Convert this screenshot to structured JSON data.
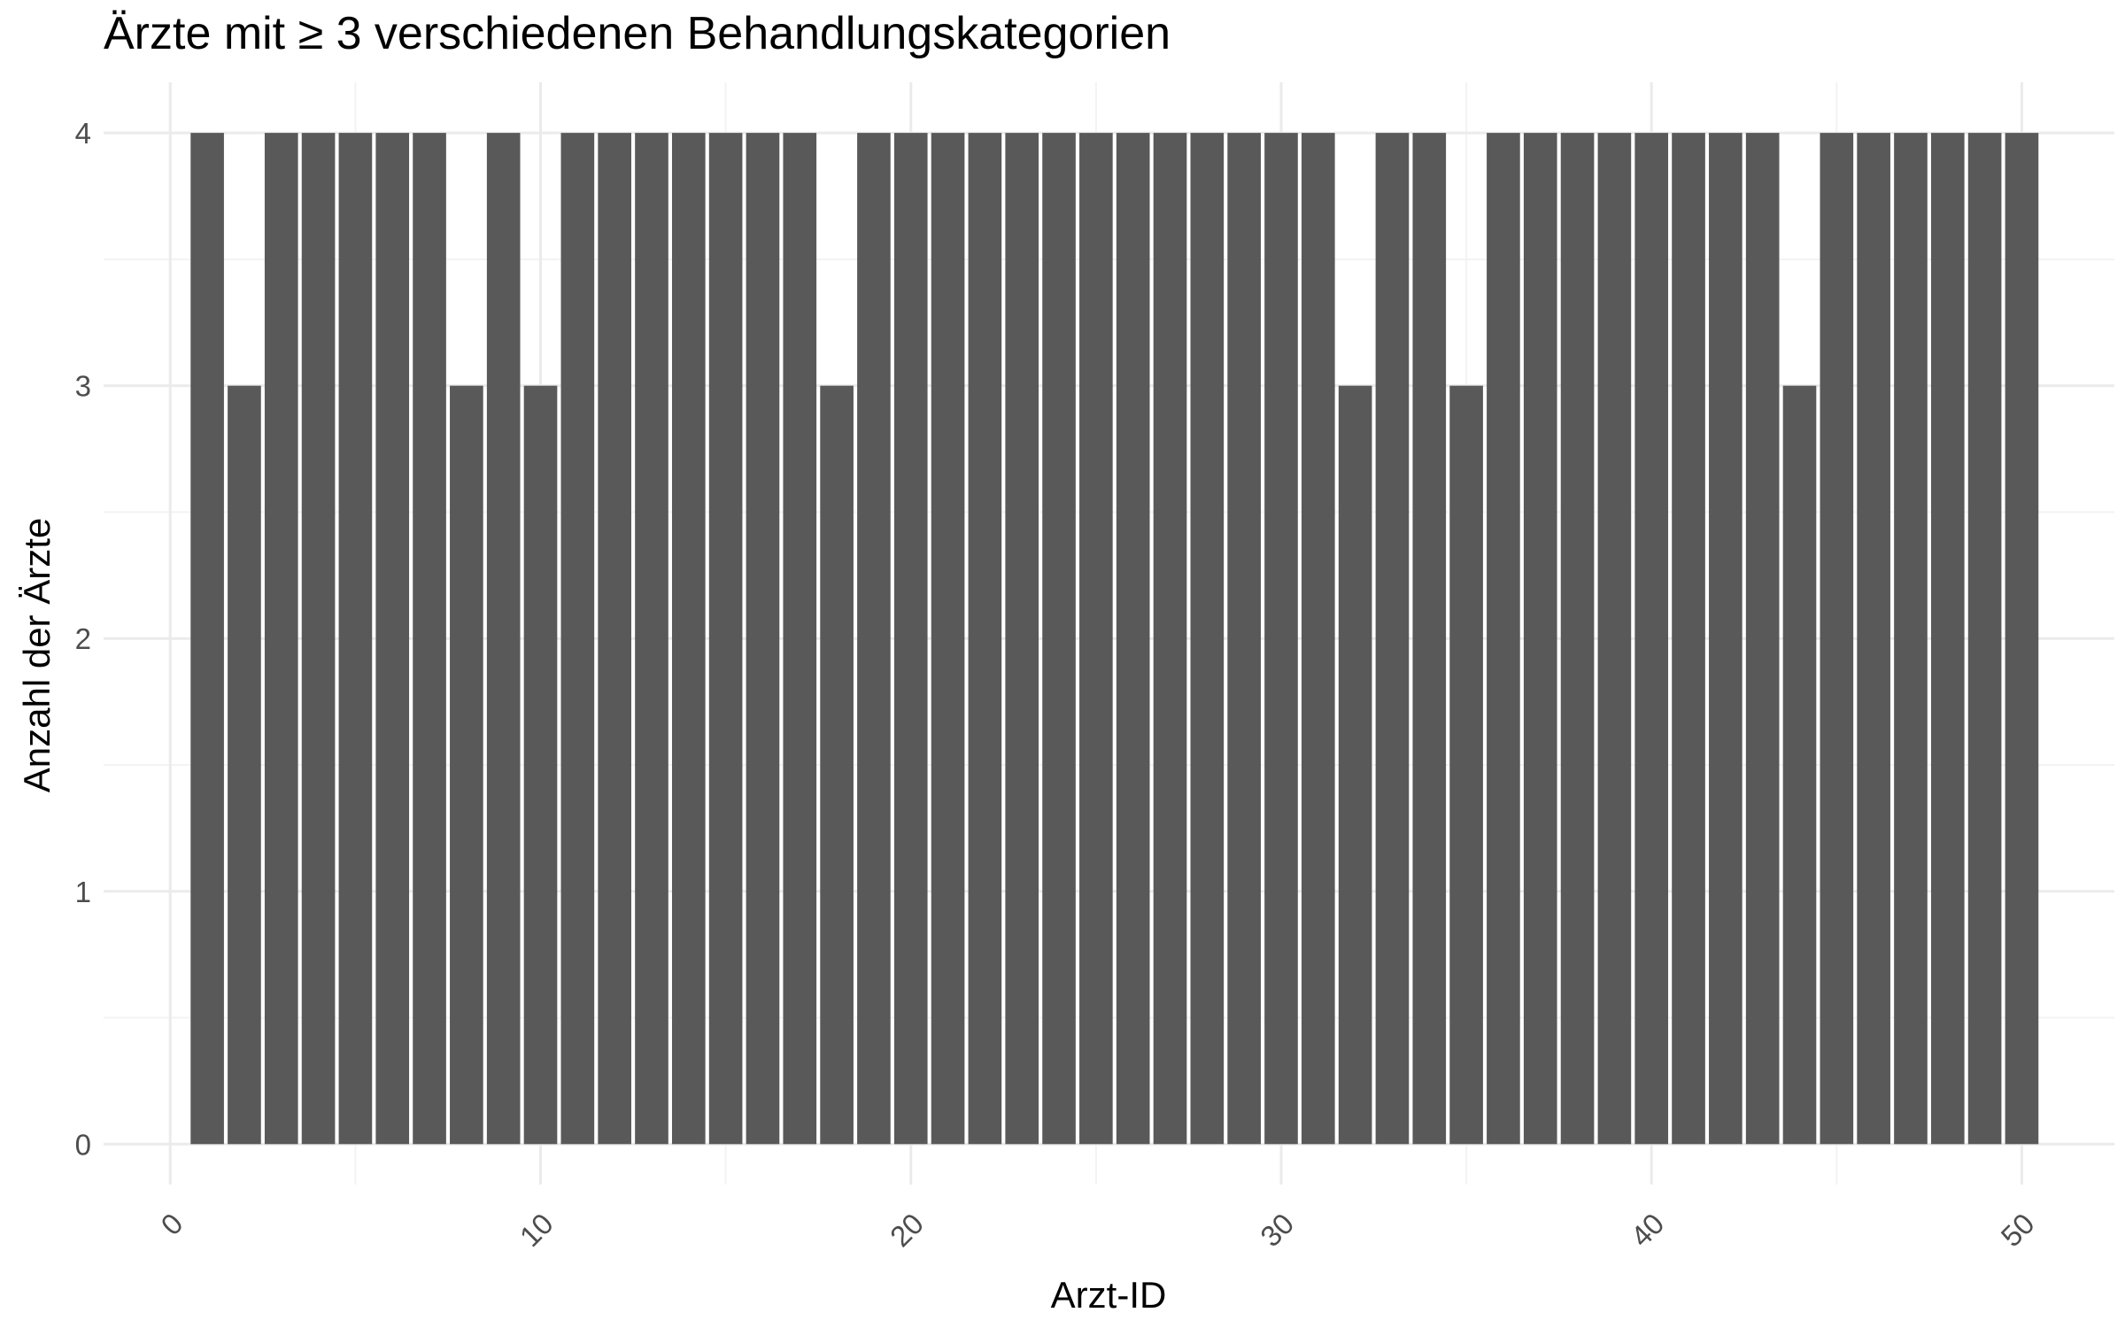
{
  "chart_data": {
    "type": "bar",
    "title": "Ärzte mit ≥ 3 verschiedenen Behandlungskategorien",
    "xlabel": "Arzt-ID",
    "ylabel": "Anzahl der Ärzte",
    "x": [
      1,
      2,
      3,
      4,
      5,
      6,
      7,
      8,
      9,
      10,
      11,
      12,
      13,
      14,
      15,
      16,
      17,
      18,
      19,
      20,
      21,
      22,
      23,
      24,
      25,
      26,
      27,
      28,
      29,
      30,
      31,
      32,
      33,
      34,
      35,
      36,
      37,
      38,
      39,
      40,
      41,
      42,
      43,
      44,
      45,
      46,
      47,
      48,
      49,
      50
    ],
    "values": [
      4,
      3,
      4,
      4,
      4,
      4,
      4,
      3,
      4,
      3,
      4,
      4,
      4,
      4,
      4,
      4,
      4,
      3,
      4,
      4,
      4,
      4,
      4,
      4,
      4,
      4,
      4,
      4,
      4,
      4,
      4,
      3,
      4,
      4,
      3,
      4,
      4,
      4,
      4,
      4,
      4,
      4,
      4,
      3,
      4,
      4,
      4,
      4,
      4,
      4
    ],
    "xlim": [
      -1.8,
      52.5
    ],
    "ylim": [
      -0.16,
      4.2
    ],
    "x_ticks": [
      0,
      10,
      20,
      30,
      40,
      50
    ],
    "x_tick_labels": [
      "0",
      "10",
      "20",
      "30",
      "40",
      "50"
    ],
    "y_ticks": [
      0,
      1,
      2,
      3,
      4
    ],
    "y_tick_labels": [
      "0",
      "1",
      "2",
      "3",
      "4"
    ],
    "grid": true,
    "legend": "none",
    "colors": {
      "bar": "#595959",
      "grid_major": "#ebebeb",
      "grid_minor": "#f3f3f3",
      "tick_text": "#4d4d4d"
    }
  }
}
